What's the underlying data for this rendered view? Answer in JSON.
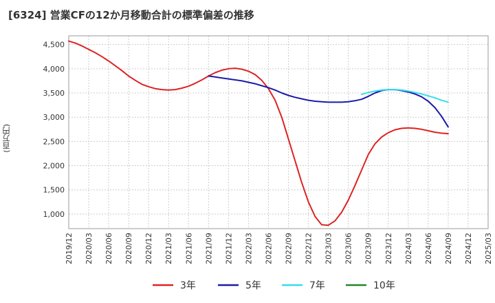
{
  "title": "[6324]  営業CFの12か月移動合計の標準偏差の推移",
  "y_unit": "(百万円)",
  "chart_data": {
    "type": "line",
    "title": "[6324]  営業CFの12か月移動合計の標準偏差の推移",
    "ylabel": "(百万円)",
    "xlabel": "",
    "ylim": [
      700,
      4680
    ],
    "yticks": [
      1000,
      1500,
      2000,
      2500,
      3000,
      3500,
      4000,
      4500
    ],
    "ytick_labels": [
      "1,000",
      "1,500",
      "2,000",
      "2,500",
      "3,000",
      "3,500",
      "4,000",
      "4,500"
    ],
    "xticks": [
      "2019/12",
      "2020/03",
      "2020/06",
      "2020/09",
      "2020/12",
      "2021/03",
      "2021/06",
      "2021/09",
      "2021/12",
      "2022/03",
      "2022/06",
      "2022/09",
      "2022/12",
      "2023/03",
      "2023/06",
      "2023/09",
      "2023/12",
      "2024/03",
      "2024/06",
      "2024/09",
      "2024/12",
      "2025/03"
    ],
    "grid": true,
    "legend_position": "bottom",
    "series": [
      {
        "name": "3年",
        "color": "#dd2222",
        "x": [
          "2019/12",
          "2020/01",
          "2020/02",
          "2020/03",
          "2020/04",
          "2020/05",
          "2020/06",
          "2020/07",
          "2020/08",
          "2020/09",
          "2020/10",
          "2020/11",
          "2020/12",
          "2021/01",
          "2021/02",
          "2021/03",
          "2021/04",
          "2021/05",
          "2021/06",
          "2021/07",
          "2021/08",
          "2021/09",
          "2021/10",
          "2021/11",
          "2021/12",
          "2022/01",
          "2022/02",
          "2022/03",
          "2022/04",
          "2022/05",
          "2022/06",
          "2022/07",
          "2022/08",
          "2022/09",
          "2022/10",
          "2022/11",
          "2022/12",
          "2023/01",
          "2023/02",
          "2023/03",
          "2023/04",
          "2023/05",
          "2023/06",
          "2023/07",
          "2023/08",
          "2023/09",
          "2023/10",
          "2023/11",
          "2023/12",
          "2024/01",
          "2024/02",
          "2024/03",
          "2024/04",
          "2024/05",
          "2024/06",
          "2024/07",
          "2024/08",
          "2024/09"
        ],
        "values": [
          4570,
          4530,
          4470,
          4400,
          4330,
          4250,
          4160,
          4060,
          3960,
          3850,
          3760,
          3680,
          3630,
          3590,
          3570,
          3560,
          3570,
          3600,
          3640,
          3700,
          3770,
          3850,
          3920,
          3970,
          4000,
          4010,
          3990,
          3950,
          3880,
          3760,
          3590,
          3350,
          3000,
          2550,
          2100,
          1650,
          1250,
          950,
          780,
          770,
          860,
          1040,
          1290,
          1590,
          1910,
          2230,
          2450,
          2590,
          2680,
          2740,
          2770,
          2780,
          2770,
          2750,
          2720,
          2690,
          2670,
          2660
        ]
      },
      {
        "name": "5年",
        "color": "#1a1aaa",
        "x": [
          "2021/09",
          "2021/10",
          "2021/11",
          "2021/12",
          "2022/01",
          "2022/02",
          "2022/03",
          "2022/04",
          "2022/05",
          "2022/06",
          "2022/07",
          "2022/08",
          "2022/09",
          "2022/10",
          "2022/11",
          "2022/12",
          "2023/01",
          "2023/02",
          "2023/03",
          "2023/04",
          "2023/05",
          "2023/06",
          "2023/07",
          "2023/08",
          "2023/09",
          "2023/10",
          "2023/11",
          "2023/12",
          "2024/01",
          "2024/02",
          "2024/03",
          "2024/04",
          "2024/05",
          "2024/06",
          "2024/07",
          "2024/08",
          "2024/09"
        ],
        "values": [
          3850,
          3830,
          3810,
          3790,
          3770,
          3750,
          3720,
          3690,
          3650,
          3610,
          3560,
          3500,
          3450,
          3410,
          3380,
          3350,
          3330,
          3320,
          3310,
          3310,
          3310,
          3320,
          3340,
          3370,
          3430,
          3500,
          3550,
          3570,
          3570,
          3550,
          3520,
          3480,
          3420,
          3330,
          3200,
          3020,
          2800
        ]
      },
      {
        "name": "7年",
        "color": "#33ddee",
        "x": [
          "2023/08",
          "2023/09",
          "2023/10",
          "2023/11",
          "2023/12",
          "2024/01",
          "2024/02",
          "2024/03",
          "2024/04",
          "2024/05",
          "2024/06",
          "2024/07",
          "2024/08",
          "2024/09"
        ],
        "values": [
          3470,
          3510,
          3540,
          3560,
          3570,
          3570,
          3560,
          3540,
          3510,
          3480,
          3440,
          3400,
          3350,
          3310
        ]
      },
      {
        "name": "10年",
        "color": "#228822",
        "x": [],
        "values": []
      }
    ]
  }
}
